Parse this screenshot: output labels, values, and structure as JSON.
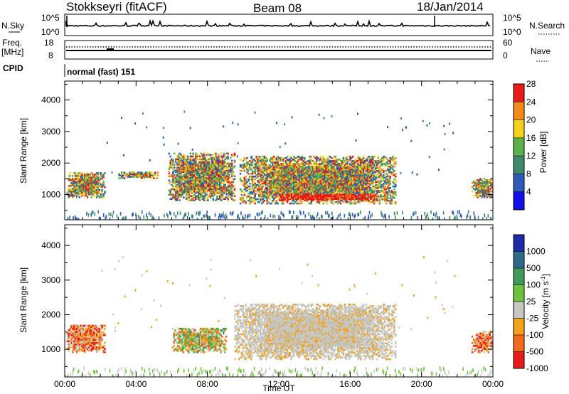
{
  "header": {
    "station": "Stokkseyri (fitACF)",
    "beam": "Beam 08",
    "date": "18/Jan/2014"
  },
  "aux_panels": {
    "nsky_label": "N.Sky",
    "nsky_ticks": [
      "10^5",
      "10^0"
    ],
    "nsearch_label": "N.Search",
    "nsearch_ticks": [
      "10^5",
      "10^0"
    ],
    "freq_label": "Freq.",
    "freq_unit": "[MHz]",
    "freq_ticks": [
      "18",
      "8"
    ],
    "nave_label": "Nave",
    "nave_ticks": [
      "60",
      "0"
    ],
    "cpid_label": "CPID",
    "cpid_text": "normal (fast) 151"
  },
  "chart_data": [
    {
      "type": "heatmap",
      "name": "power",
      "ylabel": "Slant Range [km]",
      "yticks": [
        "1000",
        "2000",
        "3000",
        "4000"
      ],
      "ylim": [
        200,
        4600
      ],
      "colorbar_label": "Power [dB]",
      "colorbar_ticks": [
        "4",
        "8",
        "12",
        "16",
        "20",
        "24",
        "28"
      ],
      "colorbar_colors": [
        "#1010e8",
        "#2e5ab8",
        "#3f8a6a",
        "#5cb24a",
        "#f4d21a",
        "#f58a1a",
        "#e81a1a"
      ],
      "regions": [
        {
          "t0": 0.1,
          "t1": 2.2,
          "r0": 900,
          "r1": 1700,
          "level": "mid"
        },
        {
          "t0": 3.0,
          "t1": 5.2,
          "r0": 1500,
          "r1": 1700,
          "level": "mid"
        },
        {
          "t0": 5.8,
          "t1": 9.5,
          "r0": 800,
          "r1": 2300,
          "level": "high"
        },
        {
          "t0": 9.8,
          "t1": 18.5,
          "r0": 700,
          "r1": 2200,
          "level": "high"
        },
        {
          "t0": 12.0,
          "t1": 17.5,
          "r0": 800,
          "r1": 1000,
          "level": "max"
        },
        {
          "t0": 22.8,
          "t1": 24.0,
          "r0": 900,
          "r1": 1500,
          "level": "high"
        }
      ]
    },
    {
      "type": "heatmap",
      "name": "velocity",
      "ylabel": "Slant Range [km]",
      "xlabel": "Time UT",
      "xticks": [
        "00:00",
        "04:00",
        "08:00",
        "12:00",
        "16:00",
        "20:00",
        "00:00"
      ],
      "yticks": [
        "1000",
        "2000",
        "3000",
        "4000"
      ],
      "ylim": [
        200,
        4600
      ],
      "colorbar_label": "Velocity [m s",
      "colorbar_label_sup": "-1",
      "colorbar_label_end": "]",
      "colorbar_ticks": [
        "1000",
        "500",
        "100",
        "25",
        "-25",
        "-100",
        "-500",
        "-1000"
      ],
      "colorbar_colors": [
        "#1a2aa8",
        "#2e6a8a",
        "#3f9a5a",
        "#6cc23a",
        "#c8c8c0",
        "#f4a21a",
        "#f46a1a",
        "#e81a1a"
      ],
      "regions": [
        {
          "t0": 0.1,
          "t1": 2.2,
          "r0": 900,
          "r1": 1700,
          "velocity": "negative"
        },
        {
          "t0": 6.0,
          "t1": 9.0,
          "r0": 900,
          "r1": 1600,
          "velocity": "mixed"
        },
        {
          "t0": 9.5,
          "t1": 18.5,
          "r0": 700,
          "r1": 2300,
          "velocity": "near-zero"
        },
        {
          "t0": 22.8,
          "t1": 24.0,
          "r0": 900,
          "r1": 1500,
          "velocity": "negative"
        }
      ]
    }
  ]
}
